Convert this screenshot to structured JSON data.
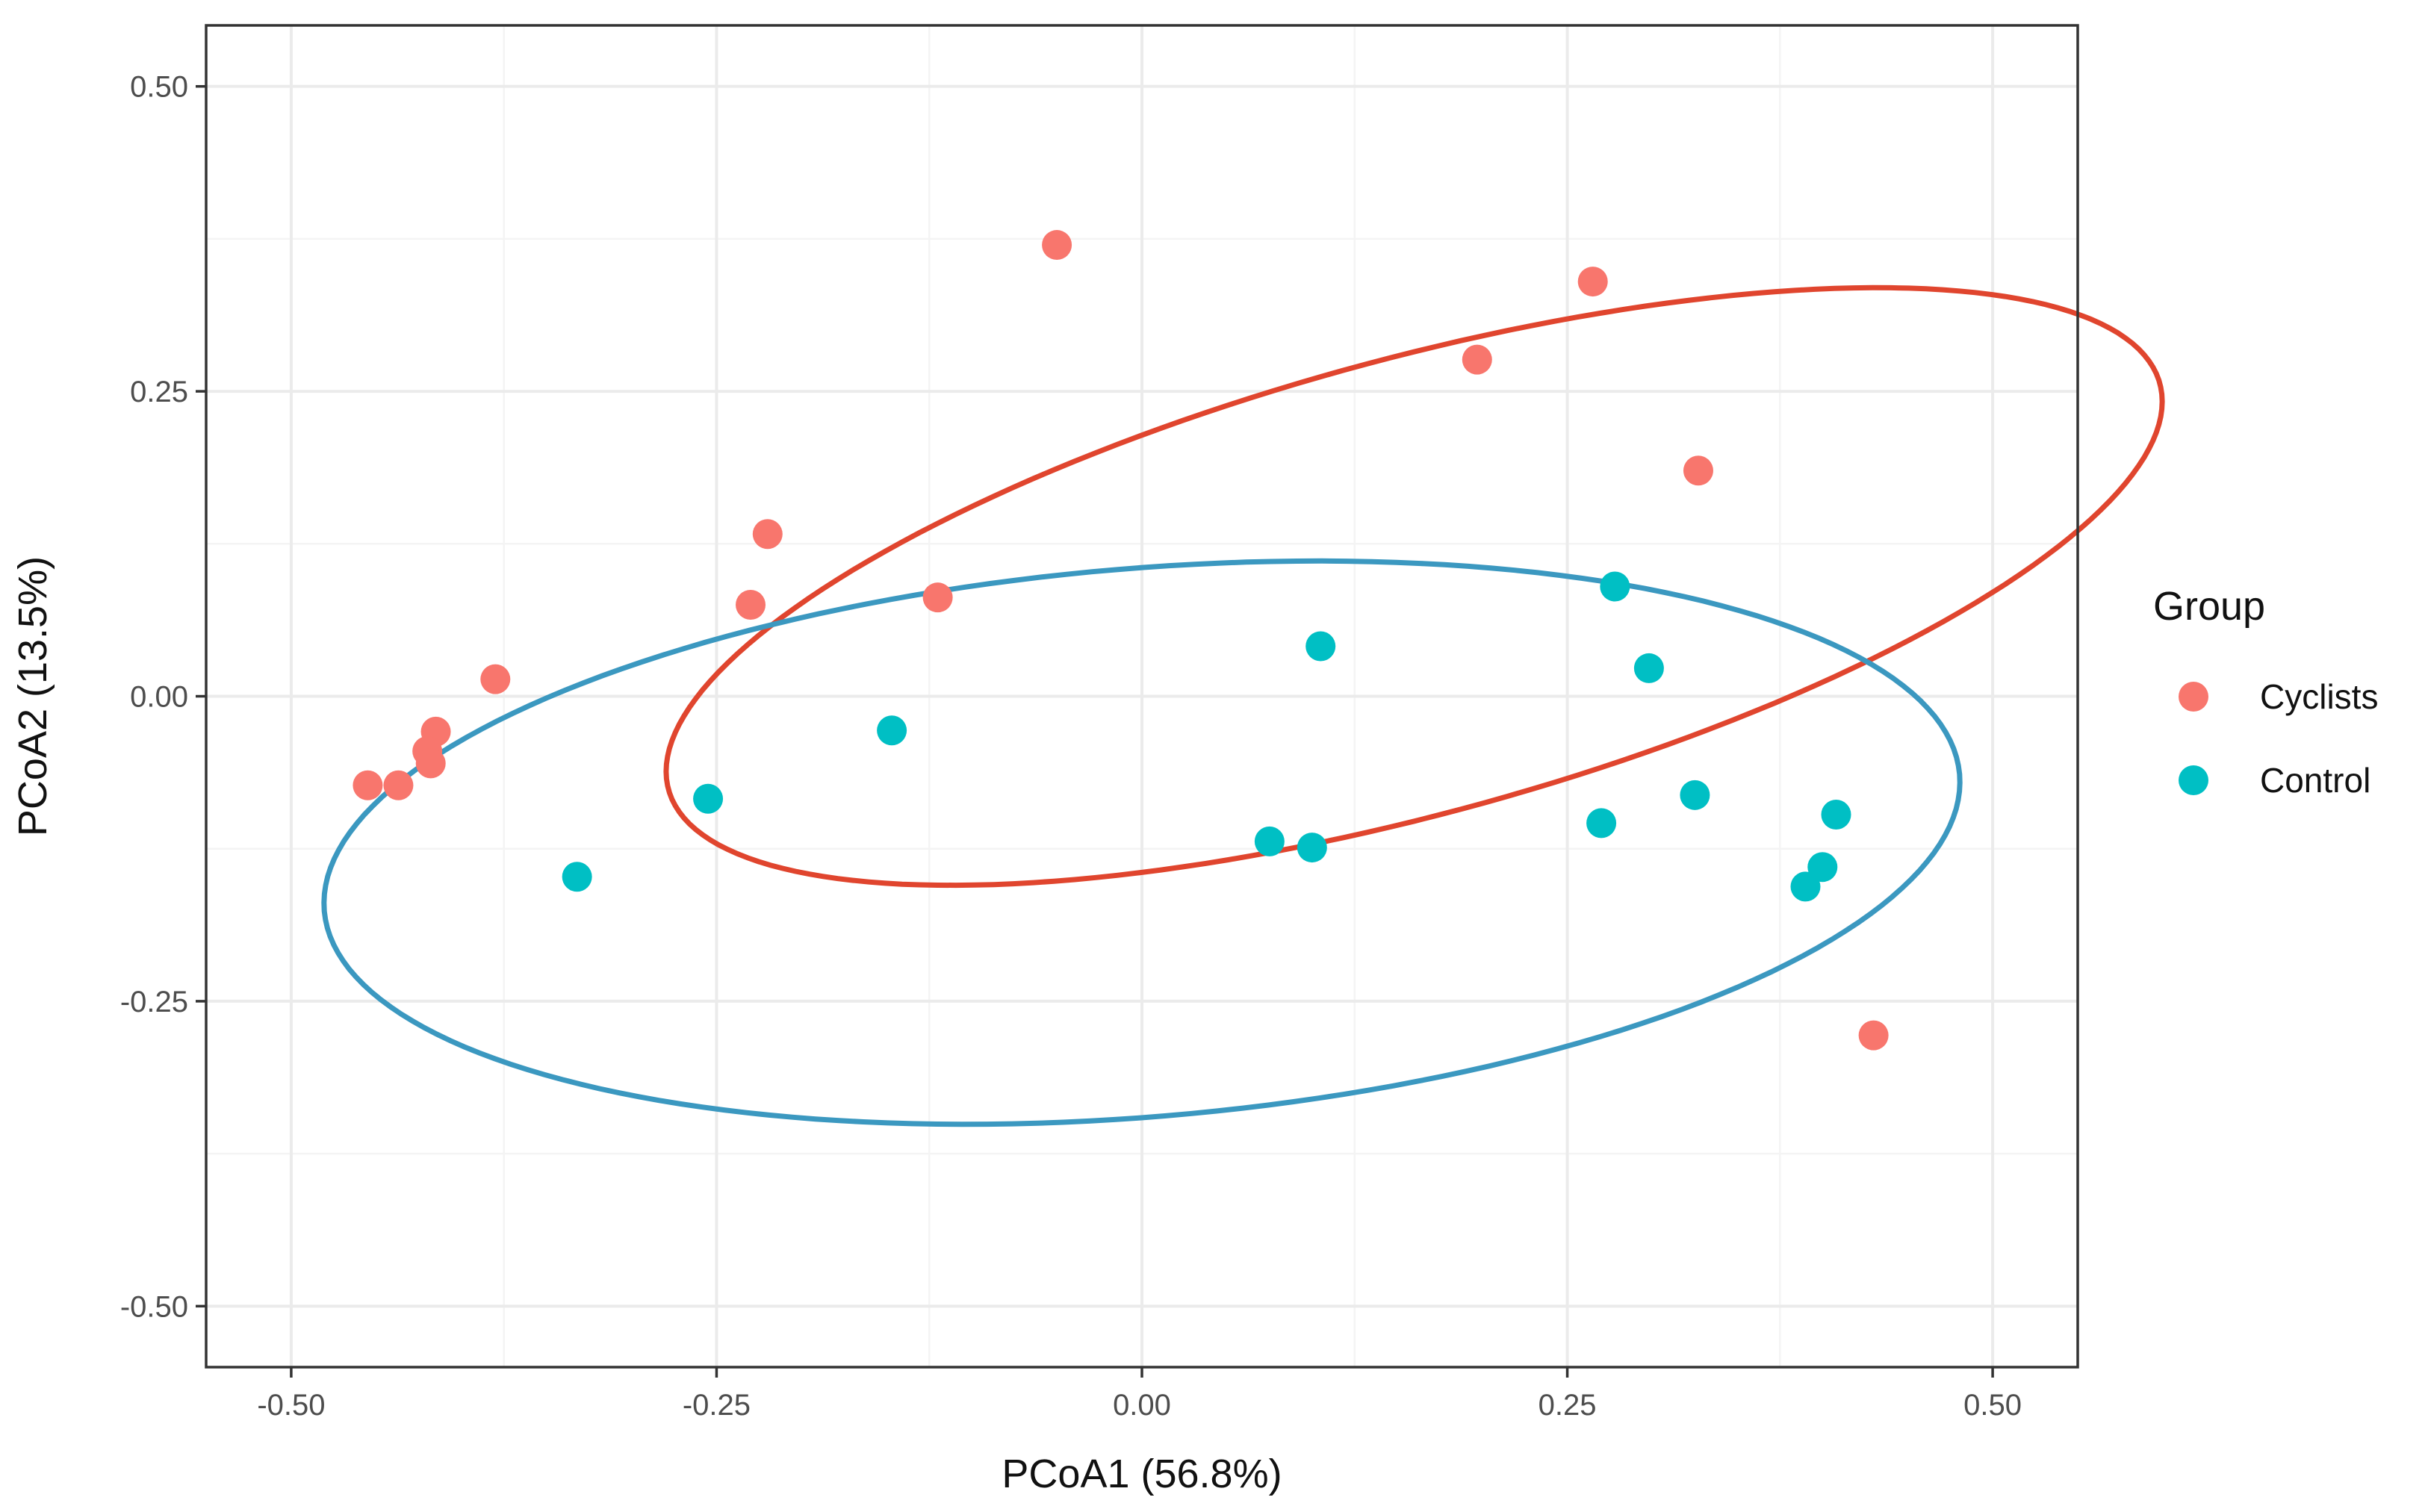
{
  "chart_data": {
    "type": "scatter",
    "title": "",
    "xlabel": "PCoA1 (56.8%)",
    "ylabel": "PCoA2 (13.5%)",
    "xlim": [
      -0.55,
      0.55
    ],
    "ylim": [
      -0.55,
      0.55
    ],
    "xticks": [
      -0.5,
      -0.25,
      0,
      0.25,
      0.5
    ],
    "xtick_labels": [
      "-0.50",
      "-0.25",
      "0.00",
      "0.25",
      "0.50"
    ],
    "yticks": [
      -0.5,
      -0.25,
      0,
      0.25,
      0.5
    ],
    "ytick_labels": [
      "-0.50",
      "-0.25",
      "0.00",
      "0.25",
      "0.50"
    ],
    "grid": true,
    "legend": {
      "title": "Group",
      "position": "right"
    },
    "series": [
      {
        "name": "Cyclists",
        "color": "#F8766D",
        "ellipse_color": "#E0452E",
        "points": [
          {
            "x": -0.05,
            "y": 0.37
          },
          {
            "x": 0.265,
            "y": 0.34
          },
          {
            "x": 0.197,
            "y": 0.276
          },
          {
            "x": 0.327,
            "y": 0.185
          },
          {
            "x": -0.22,
            "y": 0.133
          },
          {
            "x": -0.23,
            "y": 0.075
          },
          {
            "x": -0.12,
            "y": 0.081
          },
          {
            "x": -0.38,
            "y": 0.014
          },
          {
            "x": -0.415,
            "y": -0.029
          },
          {
            "x": -0.42,
            "y": -0.045
          },
          {
            "x": -0.418,
            "y": -0.055
          },
          {
            "x": -0.455,
            "y": -0.073
          },
          {
            "x": -0.437,
            "y": -0.073
          },
          {
            "x": 0.43,
            "y": -0.278
          }
        ],
        "ellipse": {
          "cx": 0.16,
          "cy": 0.09,
          "rx": 0.47,
          "ry": 0.18,
          "angle_deg": 22.5
        }
      },
      {
        "name": "Control",
        "color": "#00BFC4",
        "ellipse_color": "#3B98C0",
        "points": [
          {
            "x": 0.278,
            "y": 0.09
          },
          {
            "x": 0.105,
            "y": 0.041
          },
          {
            "x": 0.298,
            "y": 0.023
          },
          {
            "x": -0.147,
            "y": -0.028
          },
          {
            "x": -0.255,
            "y": -0.084
          },
          {
            "x": 0.325,
            "y": -0.081
          },
          {
            "x": 0.408,
            "y": -0.097
          },
          {
            "x": 0.27,
            "y": -0.104
          },
          {
            "x": 0.075,
            "y": -0.119
          },
          {
            "x": 0.1,
            "y": -0.124
          },
          {
            "x": 0.4,
            "y": -0.14
          },
          {
            "x": 0.39,
            "y": -0.156
          },
          {
            "x": -0.332,
            "y": -0.148
          }
        ],
        "ellipse": {
          "cx": 0.0,
          "cy": -0.12,
          "rx": 0.484,
          "ry": 0.224,
          "angle_deg": 7.5
        }
      }
    ]
  }
}
